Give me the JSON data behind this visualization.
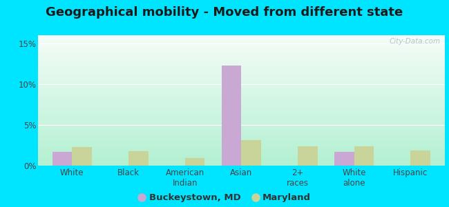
{
  "title": "Geographical mobility - Moved from different state",
  "categories": [
    "White",
    "Black",
    "American\nIndian",
    "Asian",
    "2+\nraces",
    "White\nalone",
    "Hispanic"
  ],
  "buckeystown_values": [
    1.7,
    0.0,
    0.0,
    12.3,
    0.0,
    1.7,
    0.0
  ],
  "maryland_values": [
    2.3,
    1.8,
    0.9,
    3.1,
    2.4,
    2.4,
    1.9
  ],
  "buckeystown_color": "#c9a8d4",
  "maryland_color": "#c8d49a",
  "ylim": [
    0,
    0.16
  ],
  "yticks": [
    0.0,
    0.05,
    0.1,
    0.15
  ],
  "ytick_labels": [
    "0%",
    "5%",
    "10%",
    "15%"
  ],
  "outer_bg": "#00e5ff",
  "bar_width": 0.35,
  "legend_buckeystown": "Buckeystown, MD",
  "legend_maryland": "Maryland",
  "title_fontsize": 13,
  "tick_fontsize": 8.5,
  "legend_fontsize": 9.5
}
